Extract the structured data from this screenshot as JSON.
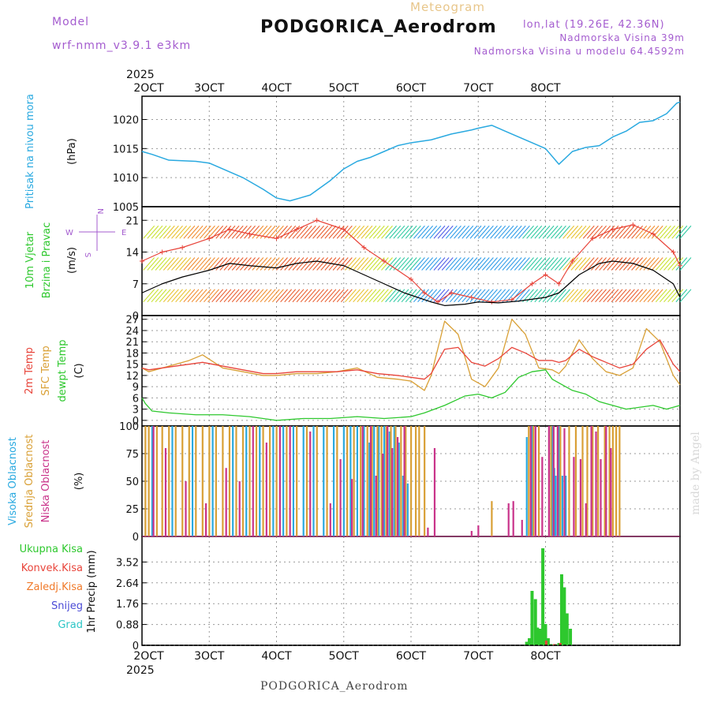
{
  "header": {
    "model_label": "Model",
    "model_value": "wrf-nmm_v3.9.1 e3km",
    "meteogram_label": "Meteogram",
    "station": "PODGORICA_Aerodrom",
    "lonlat": "lon,lat (19.26E, 42.36N)",
    "elevation": "Nadmorska Visina 39m",
    "model_elevation": "Nadmorska Visina u modelu 64.4592m",
    "footer": "PODGORICA_Aerodrom",
    "credit": "made by Angel"
  },
  "colors": {
    "pressure": "#29a9e0",
    "wind_speed": "#000000",
    "gust": "#e8443a",
    "temp2m": "#e8443a",
    "sfc_temp": "#d9a036",
    "dewpt": "#2ec82e",
    "cloud_high": "#29a9e0",
    "cloud_mid": "#d9a036",
    "cloud_low": "#c9338a",
    "total_precip": "#2ec82e",
    "conv_precip": "#e8443a",
    "frz_precip": "#f07a2a",
    "snow": "#4b4bd6",
    "hail": "#2cc6c6",
    "label_purple": "#a45ccf"
  },
  "chart_data": [
    {
      "type": "line",
      "panel": "pressure",
      "labels": [
        "Pritisak na nivou mora",
        "(hPa)"
      ],
      "ylim": [
        1005,
        1024
      ],
      "yticks": [
        1005,
        1010,
        1015,
        1020
      ],
      "series": [
        {
          "name": "Pressure",
          "x": [
            0,
            0.15,
            0.4,
            0.8,
            1.0,
            1.2,
            1.5,
            1.8,
            2.0,
            2.2,
            2.5,
            2.8,
            3.0,
            3.2,
            3.4,
            3.6,
            3.8,
            4.0,
            4.3,
            4.6,
            4.9,
            5.0,
            5.2,
            5.5,
            5.8,
            6.0,
            6.2,
            6.4,
            6.6,
            6.8,
            7.0,
            7.2,
            7.4,
            7.6,
            7.8,
            7.95,
            8.0
          ],
          "values": [
            1014.5,
            1014,
            1013,
            1012.8,
            1012.5,
            1011.5,
            1010,
            1008,
            1006.5,
            1006,
            1007,
            1009.5,
            1011.5,
            1012.8,
            1013.5,
            1014.5,
            1015.5,
            1016,
            1016.5,
            1017.5,
            1018.2,
            1018.5,
            1019,
            1017.5,
            1016,
            1015,
            1012.3,
            1014.5,
            1015.2,
            1015.5,
            1017,
            1018,
            1019.5,
            1019.8,
            1021,
            1022.8,
            1023
          ]
        }
      ]
    },
    {
      "type": "line",
      "panel": "wind",
      "labels": [
        "10m Vjetar",
        "Brzina i Pravac",
        "(m/s)"
      ],
      "direction_legend": [
        "N",
        "E",
        "S",
        "W"
      ],
      "ylim": [
        0,
        24
      ],
      "yticks": [
        0,
        7,
        14,
        21
      ],
      "series": [
        {
          "name": "Wind speed",
          "x": [
            0,
            0.3,
            0.6,
            1.0,
            1.3,
            1.6,
            2.0,
            2.3,
            2.6,
            3.0,
            3.3,
            3.6,
            3.9,
            4.0,
            4.3,
            4.5,
            4.8,
            5.0,
            5.3,
            5.6,
            5.9,
            6.0,
            6.2,
            6.5,
            6.8,
            7.0,
            7.3,
            7.6,
            7.9,
            8.0
          ],
          "values": [
            5,
            7,
            8.5,
            10,
            11.5,
            11,
            10.5,
            11.5,
            12,
            11,
            9,
            7,
            5,
            4.5,
            3,
            2.2,
            2.5,
            3,
            2.8,
            3.2,
            3.8,
            4,
            5,
            9,
            11.5,
            12,
            11.5,
            10,
            7,
            4
          ]
        },
        {
          "name": "Wind gust",
          "x": [
            0,
            0.3,
            0.6,
            1.0,
            1.3,
            1.6,
            2.0,
            2.3,
            2.6,
            3.0,
            3.3,
            3.6,
            4.0,
            4.2,
            4.4,
            4.6,
            4.9,
            5.2,
            5.5,
            5.8,
            6.0,
            6.2,
            6.4,
            6.7,
            7.0,
            7.3,
            7.6,
            7.9,
            8.0
          ],
          "values": [
            12,
            14,
            15,
            17,
            19,
            18,
            17,
            19,
            21,
            19,
            15,
            12,
            8,
            5,
            3,
            5,
            4,
            3,
            3.5,
            7,
            9,
            7,
            12,
            17,
            19,
            20,
            18,
            14,
            11
          ]
        }
      ]
    },
    {
      "type": "line",
      "panel": "temperature",
      "labels": [
        "2m Temp",
        "SFC Temp",
        "dewpt Temp",
        "(C)"
      ],
      "ylim": [
        -1.5,
        28
      ],
      "yticks": [
        0,
        3,
        6,
        9,
        12,
        15,
        18,
        21,
        24,
        27
      ],
      "series": [
        {
          "name": "2m Temp",
          "x": [
            0,
            0.1,
            0.3,
            0.5,
            0.7,
            0.9,
            1.2,
            1.5,
            1.8,
            2.0,
            2.3,
            2.6,
            2.9,
            3.2,
            3.5,
            3.8,
            4.0,
            4.2,
            4.3,
            4.5,
            4.7,
            4.9,
            5.1,
            5.3,
            5.5,
            5.7,
            5.9,
            6.1,
            6.2,
            6.3,
            6.5,
            6.7,
            6.9,
            7.1,
            7.3,
            7.5,
            7.7,
            7.9,
            8.0
          ],
          "values": [
            14,
            13.5,
            14,
            14.5,
            15,
            15.5,
            14.5,
            13.5,
            12.5,
            12.5,
            13,
            13,
            13,
            13.5,
            12.5,
            12,
            11.5,
            11,
            12.5,
            19,
            19.5,
            15.5,
            14.5,
            16.5,
            19.5,
            18,
            16,
            16,
            15.5,
            16,
            19,
            17,
            15.5,
            14,
            15,
            19,
            21.5,
            15,
            13
          ]
        },
        {
          "name": "SFC Temp",
          "x": [
            0,
            0.1,
            0.3,
            0.5,
            0.7,
            0.9,
            1.2,
            1.5,
            1.8,
            2.0,
            2.3,
            2.6,
            2.9,
            3.2,
            3.5,
            3.8,
            4.0,
            4.2,
            4.3,
            4.5,
            4.7,
            4.9,
            5.1,
            5.3,
            5.5,
            5.7,
            5.9,
            6.1,
            6.2,
            6.3,
            6.5,
            6.7,
            6.9,
            7.1,
            7.3,
            7.5,
            7.7,
            7.9,
            8.0
          ],
          "values": [
            14,
            13,
            14,
            15,
            16,
            17.5,
            14,
            13,
            12,
            12,
            12.5,
            12.5,
            13,
            14,
            11.5,
            11,
            10.5,
            8,
            12,
            26.5,
            23,
            11,
            9,
            14,
            27,
            23,
            14,
            13.5,
            12.5,
            14.5,
            21.5,
            16.5,
            13,
            12,
            14,
            24.5,
            21,
            12,
            9.5
          ]
        },
        {
          "name": "Dewpt Temp",
          "x": [
            0,
            0.05,
            0.15,
            0.4,
            0.8,
            1.2,
            1.6,
            2.0,
            2.4,
            2.8,
            3.2,
            3.6,
            4.0,
            4.2,
            4.5,
            4.8,
            5.0,
            5.2,
            5.4,
            5.6,
            5.8,
            6.0,
            6.1,
            6.2,
            6.4,
            6.6,
            6.8,
            7.0,
            7.2,
            7.4,
            7.6,
            7.8,
            8.0
          ],
          "values": [
            6,
            4.5,
            2.5,
            2,
            1.5,
            1.5,
            1,
            0,
            0.5,
            0.5,
            1,
            0.5,
            1,
            2,
            4,
            6.5,
            7,
            6,
            7.5,
            11.5,
            13,
            13.5,
            11,
            10,
            8,
            7,
            5,
            4,
            3,
            3.5,
            4,
            3,
            4
          ]
        }
      ]
    },
    {
      "type": "bar",
      "panel": "clouds",
      "labels": [
        "Visoka Oblacnost",
        "Srednja Oblacnost",
        "Niska Oblacnost",
        "(%)"
      ],
      "ylim": [
        0,
        100
      ],
      "yticks": [
        0,
        25,
        50,
        75,
        100
      ],
      "series": [
        {
          "name": "Visoka Oblacnost",
          "x": [
            0.15,
            0.45,
            0.75,
            1.05,
            1.35,
            1.55,
            1.75,
            1.95,
            2.1,
            2.25,
            2.4,
            2.55,
            2.7,
            2.85,
            3.0,
            3.1,
            3.2,
            3.3,
            3.38,
            3.45,
            3.52,
            3.6,
            3.68,
            3.75,
            3.82,
            3.88,
            3.95,
            5.72,
            5.8,
            6.1,
            6.13,
            6.15,
            6.2,
            6.25,
            6.3
          ],
          "values": [
            100,
            100,
            100,
            100,
            100,
            100,
            100,
            100,
            100,
            100,
            100,
            100,
            100,
            100,
            100,
            100,
            100,
            100,
            85,
            100,
            100,
            100,
            95,
            100,
            85,
            55,
            48,
            90,
            100,
            100,
            62,
            55,
            100,
            55,
            55
          ]
        },
        {
          "name": "Srednja Oblacnost",
          "x": [
            0.05,
            0.1,
            0.22,
            0.3,
            0.4,
            0.5,
            0.6,
            0.7,
            0.8,
            0.9,
            1.0,
            1.1,
            1.2,
            1.3,
            1.4,
            1.5,
            1.6,
            1.7,
            1.8,
            1.9,
            2.0,
            2.15,
            2.3,
            2.45,
            2.6,
            2.75,
            2.9,
            3.05,
            3.15,
            3.25,
            3.35,
            3.42,
            3.5,
            3.56,
            3.63,
            3.7,
            3.77,
            3.85,
            3.92,
            4.0,
            4.07,
            4.12,
            4.2,
            5.2,
            5.75,
            5.82,
            5.9,
            6.08,
            6.18,
            6.22,
            6.35,
            6.45,
            6.55,
            6.62,
            6.7,
            6.78,
            6.88,
            6.95,
            7.0,
            7.05,
            7.1
          ],
          "values": [
            100,
            100,
            100,
            100,
            100,
            100,
            100,
            100,
            100,
            100,
            100,
            100,
            100,
            100,
            100,
            100,
            100,
            100,
            100,
            100,
            100,
            100,
            100,
            100,
            100,
            100,
            100,
            100,
            100,
            100,
            100,
            100,
            100,
            100,
            100,
            100,
            100,
            100,
            100,
            100,
            100,
            100,
            100,
            32,
            100,
            100,
            100,
            100,
            100,
            100,
            100,
            100,
            100,
            100,
            100,
            100,
            100,
            100,
            100,
            100,
            100
          ]
        },
        {
          "name": "Niska Oblacnost",
          "x": [
            0.17,
            0.35,
            0.65,
            0.95,
            1.25,
            1.45,
            1.65,
            1.85,
            2.05,
            2.2,
            2.5,
            2.8,
            2.95,
            3.12,
            3.28,
            3.4,
            3.48,
            3.58,
            3.65,
            3.72,
            3.8,
            3.9,
            4.25,
            4.35,
            4.9,
            5.0,
            5.45,
            5.52,
            5.65,
            5.78,
            5.85,
            5.95,
            6.05,
            6.12,
            6.18,
            6.28,
            6.42,
            6.52,
            6.6,
            6.68,
            6.75,
            6.82,
            6.9,
            6.97
          ],
          "values": [
            100,
            80,
            50,
            30,
            62,
            50,
            100,
            85,
            100,
            100,
            95,
            30,
            70,
            52,
            100,
            100,
            55,
            75,
            100,
            80,
            90,
            100,
            8,
            80,
            5,
            10,
            30,
            32,
            15,
            100,
            100,
            72,
            100,
            100,
            100,
            98,
            72,
            70,
            30,
            100,
            95,
            70,
            100,
            80
          ]
        }
      ]
    },
    {
      "type": "bar",
      "panel": "precipitation",
      "labels": [
        "Ukupna Kisa",
        "Konvek.Kisa",
        "Zaledj.Kisa",
        "Snijeg",
        "Grad",
        "1hr Precip (mm)"
      ],
      "ylim": [
        0,
        4.6
      ],
      "yticks": [
        0,
        0.88,
        1.76,
        2.64,
        3.52
      ],
      "series": [
        {
          "name": "Ukupna Kisa",
          "x": [
            5.72,
            5.76,
            5.8,
            5.85,
            5.88,
            5.92,
            5.96,
            6.0,
            6.04,
            6.08,
            6.14,
            6.2,
            6.24,
            6.28,
            6.32,
            6.37
          ],
          "values": [
            0.15,
            0.3,
            2.3,
            1.95,
            0.75,
            0.7,
            4.1,
            0.9,
            0.3,
            0.05,
            0.05,
            0.1,
            3.0,
            2.45,
            1.35,
            0.7
          ]
        },
        {
          "name": "Konvek.Kisa",
          "x": [
            6.01,
            6.13,
            6.22
          ],
          "values": [
            0.2,
            0.05,
            0.1
          ]
        },
        {
          "name": "Zaledj.Kisa",
          "x": [],
          "values": []
        },
        {
          "name": "Snijeg",
          "x": [],
          "values": []
        },
        {
          "name": "Grad",
          "x": [],
          "values": []
        }
      ]
    }
  ],
  "time_axis": {
    "year_label": "2025",
    "ticks": [
      "2OCT",
      "3OCT",
      "4OCT",
      "5OCT",
      "6OCT",
      "7OCT",
      "8OCT"
    ]
  }
}
